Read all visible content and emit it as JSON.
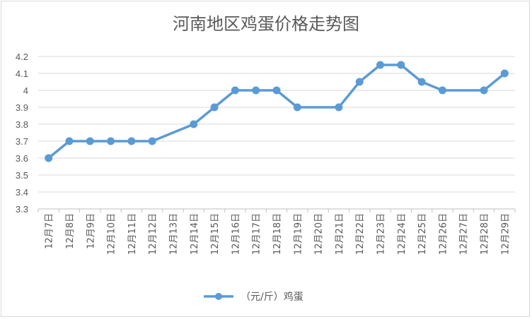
{
  "chart_data": {
    "type": "line",
    "title": "河南地区鸡蛋价格走势图",
    "categories": [
      "12月7日",
      "12月8日",
      "12月9日",
      "12月10日",
      "12月11日",
      "12月12日",
      "12月13日",
      "12月14日",
      "12月15日",
      "12月16日",
      "12月17日",
      "12月18日",
      "12月19日",
      "12月20日",
      "12月21日",
      "12月22日",
      "12月23日",
      "12月24日",
      "12月25日",
      "12月26日",
      "12月27日",
      "12月28日",
      "12月29日"
    ],
    "series": [
      {
        "name": "（元/斤）鸡蛋",
        "values": [
          3.6,
          3.7,
          3.7,
          3.7,
          3.7,
          3.7,
          null,
          3.8,
          3.9,
          4.0,
          4.0,
          4.0,
          3.9,
          null,
          3.9,
          4.05,
          4.15,
          4.15,
          4.05,
          4.0,
          null,
          4.0,
          4.1
        ]
      }
    ],
    "ylim": [
      3.3,
      4.2
    ],
    "yticks": [
      "3.3",
      "3.4",
      "3.5",
      "3.6",
      "3.7",
      "3.8",
      "3.9",
      "4",
      "4.1",
      "4.2"
    ],
    "grid": true,
    "legend_position": "bottom",
    "color": "#5b9bd5"
  }
}
